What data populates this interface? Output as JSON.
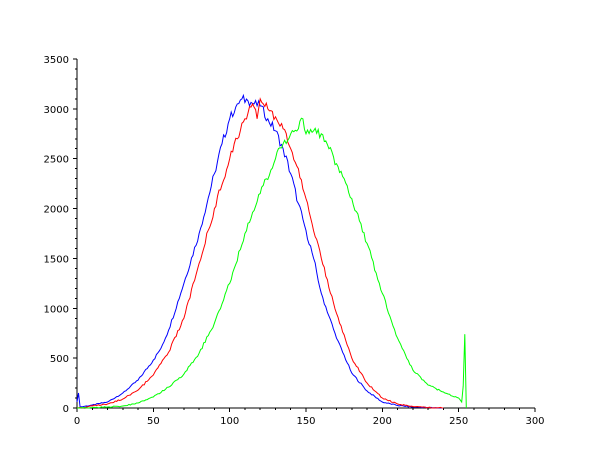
{
  "chart_data": {
    "type": "line",
    "title": "",
    "xlabel": "",
    "ylabel": "",
    "xlim": [
      0,
      300
    ],
    "ylim": [
      0,
      3500
    ],
    "x_ticks": [
      0,
      50,
      100,
      150,
      200,
      250,
      300
    ],
    "y_ticks": [
      0,
      500,
      1000,
      1500,
      2000,
      2500,
      3000,
      3500
    ],
    "x_tick_labels": [
      "0",
      "50",
      "100",
      "150",
      "200",
      "250",
      "300"
    ],
    "y_tick_labels": [
      "0",
      "500",
      "1000",
      "1500",
      "2000",
      "2500",
      "3000",
      "3500"
    ],
    "grid": false,
    "legend": "none",
    "series": [
      {
        "color": "#0000ff",
        "x": [
          0,
          1,
          2,
          10,
          20,
          30,
          40,
          50,
          55,
          60,
          70,
          80,
          90,
          95,
          100,
          105,
          108,
          112,
          116,
          120,
          125,
          130,
          135,
          140,
          145,
          150,
          155,
          160,
          170,
          180,
          190,
          200,
          210,
          220,
          230,
          240
        ],
        "y": [
          60,
          150,
          10,
          30,
          60,
          150,
          280,
          480,
          600,
          780,
          1250,
          1750,
          2350,
          2650,
          2900,
          3050,
          3100,
          3080,
          3050,
          3030,
          2900,
          2780,
          2600,
          2350,
          2050,
          1780,
          1500,
          1150,
          700,
          350,
          170,
          60,
          25,
          10,
          5,
          0
        ]
      },
      {
        "color": "#ff0000",
        "x": [
          0,
          5,
          10,
          20,
          30,
          40,
          50,
          60,
          70,
          80,
          90,
          100,
          105,
          110,
          115,
          118,
          120,
          122,
          125,
          130,
          135,
          140,
          145,
          150,
          160,
          170,
          180,
          190,
          200,
          210,
          220,
          230,
          240
        ],
        "y": [
          0,
          5,
          20,
          40,
          90,
          180,
          330,
          560,
          900,
          1450,
          2000,
          2500,
          2700,
          2900,
          3050,
          2900,
          3100,
          3050,
          3000,
          2920,
          2800,
          2600,
          2400,
          2100,
          1500,
          950,
          500,
          250,
          100,
          40,
          15,
          5,
          0
        ]
      },
      {
        "color": "#00ff00",
        "x": [
          0,
          10,
          20,
          30,
          40,
          50,
          60,
          70,
          80,
          90,
          100,
          110,
          120,
          130,
          135,
          140,
          145,
          148,
          150,
          155,
          160,
          165,
          170,
          175,
          180,
          190,
          200,
          210,
          220,
          230,
          240,
          250,
          252,
          253,
          254,
          255
        ],
        "y": [
          0,
          5,
          10,
          20,
          50,
          110,
          210,
          340,
          550,
          850,
          1250,
          1750,
          2150,
          2500,
          2650,
          2750,
          2800,
          2900,
          2750,
          2780,
          2750,
          2600,
          2450,
          2300,
          2100,
          1650,
          1150,
          700,
          380,
          230,
          160,
          100,
          60,
          220,
          740,
          0
        ]
      }
    ]
  }
}
